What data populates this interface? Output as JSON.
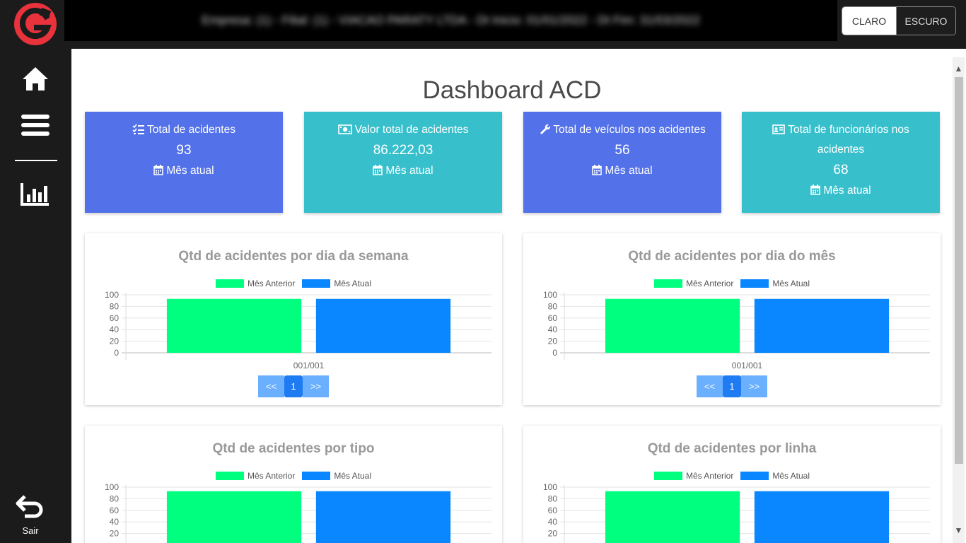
{
  "colors": {
    "blue_card": "#5371e8",
    "teal_card": "#37c0cc",
    "prev_month": "#00ff7f",
    "curr_month": "#0a86ff",
    "sidebar_bg": "#1b1b1b",
    "logo": "#e8323c"
  },
  "header": {
    "company_info": "Empresa: (1) - Filial: (1) - VIACAO PARATY LTDA - Dt Inicio: 01/01/2022 - Dt Fim: 31/03/2022"
  },
  "theme": {
    "light": "CLARO",
    "dark": "ESCURO",
    "selected": "CLARO"
  },
  "sidebar": {
    "icons": [
      "home-icon",
      "menu-icon",
      "bar-chart-icon"
    ],
    "logout_label": "Sair"
  },
  "page": {
    "title": "Dashboard ACD"
  },
  "cards": [
    {
      "icon": "checklist-icon",
      "title": "Total de acidentes",
      "value": "93",
      "period": "Mês atual"
    },
    {
      "icon": "money-icon",
      "title": "Valor total de acidentes",
      "value": "86.222,03",
      "period": "Mês atual"
    },
    {
      "icon": "wrench-icon",
      "title": "Total de veículos nos acidentes",
      "value": "56",
      "period": "Mês atual"
    },
    {
      "icon": "id-card-icon",
      "title": "Total de funcionários nos acidentes",
      "value": "68",
      "period": "Mês atual"
    }
  ],
  "legend": {
    "prev": "Mês Anterior",
    "curr": "Mês Atual"
  },
  "pager": {
    "prev": "<<",
    "current": "1",
    "next": ">>"
  },
  "chart_data": [
    {
      "type": "bar",
      "title": "Qtd de acidentes por dia da semana",
      "categories": [
        "001/001"
      ],
      "ylim": [
        0,
        100
      ],
      "yticks": [
        0,
        20,
        40,
        60,
        80,
        100
      ],
      "series": [
        {
          "name": "Mês Anterior",
          "values": [
            93
          ]
        },
        {
          "name": "Mês Atual",
          "values": [
            93
          ]
        }
      ],
      "legend": "top"
    },
    {
      "type": "bar",
      "title": "Qtd de acidentes por dia do mês",
      "categories": [
        "001/001"
      ],
      "ylim": [
        0,
        100
      ],
      "yticks": [
        0,
        20,
        40,
        60,
        80,
        100
      ],
      "series": [
        {
          "name": "Mês Anterior",
          "values": [
            93
          ]
        },
        {
          "name": "Mês Atual",
          "values": [
            93
          ]
        }
      ],
      "legend": "top"
    },
    {
      "type": "bar",
      "title": "Qtd de acidentes por tipo",
      "categories": [
        ""
      ],
      "ylim": [
        0,
        100
      ],
      "yticks": [
        20,
        40,
        60,
        80,
        100
      ],
      "series": [
        {
          "name": "Mês Anterior",
          "values": [
            93
          ]
        },
        {
          "name": "Mês Atual",
          "values": [
            93
          ]
        }
      ],
      "legend": "top"
    },
    {
      "type": "bar",
      "title": "Qtd de acidentes por linha",
      "categories": [
        ""
      ],
      "ylim": [
        0,
        100
      ],
      "yticks": [
        20,
        40,
        60,
        80,
        100
      ],
      "series": [
        {
          "name": "Mês Anterior",
          "values": [
            93
          ]
        },
        {
          "name": "Mês Atual",
          "values": [
            93
          ]
        }
      ],
      "legend": "top"
    }
  ]
}
